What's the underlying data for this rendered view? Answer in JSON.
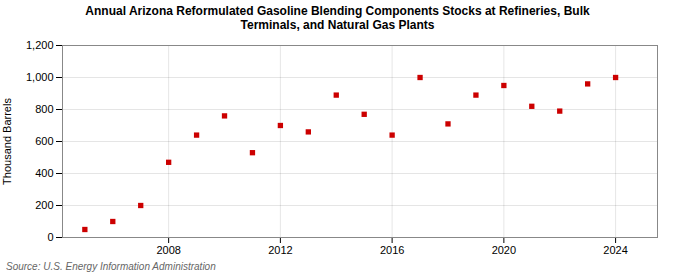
{
  "chart_data": {
    "type": "scatter",
    "title": "Annual Arizona Reformulated Gasoline Blending Components Stocks at Refineries, Bulk\nTerminals, and Natural Gas Plants",
    "ylabel": "Thousand Barrels",
    "annotations": [
      "Source: U.S. Energy Information Administration"
    ],
    "x": [
      2005,
      2006,
      2007,
      2008,
      2009,
      2010,
      2011,
      2012,
      2013,
      2014,
      2015,
      2016,
      2017,
      2018,
      2019,
      2020,
      2021,
      2022,
      2023,
      2024
    ],
    "values": [
      50,
      100,
      200,
      470,
      640,
      760,
      530,
      700,
      660,
      890,
      770,
      640,
      1000,
      710,
      890,
      950,
      820,
      790,
      960,
      1000
    ],
    "color": "#cc0000",
    "marker": "square",
    "xlim": [
      2004.2,
      2025.5
    ],
    "xticks": [
      2008,
      2012,
      2016,
      2020,
      2024
    ],
    "ylim": [
      0,
      1200
    ],
    "yticks": [
      0,
      200,
      400,
      600,
      {
        "value": 1000,
        "label": "1,000"
      },
      {
        "value": 1200,
        "label": "1,200"
      },
      800
    ],
    "grid": true
  }
}
